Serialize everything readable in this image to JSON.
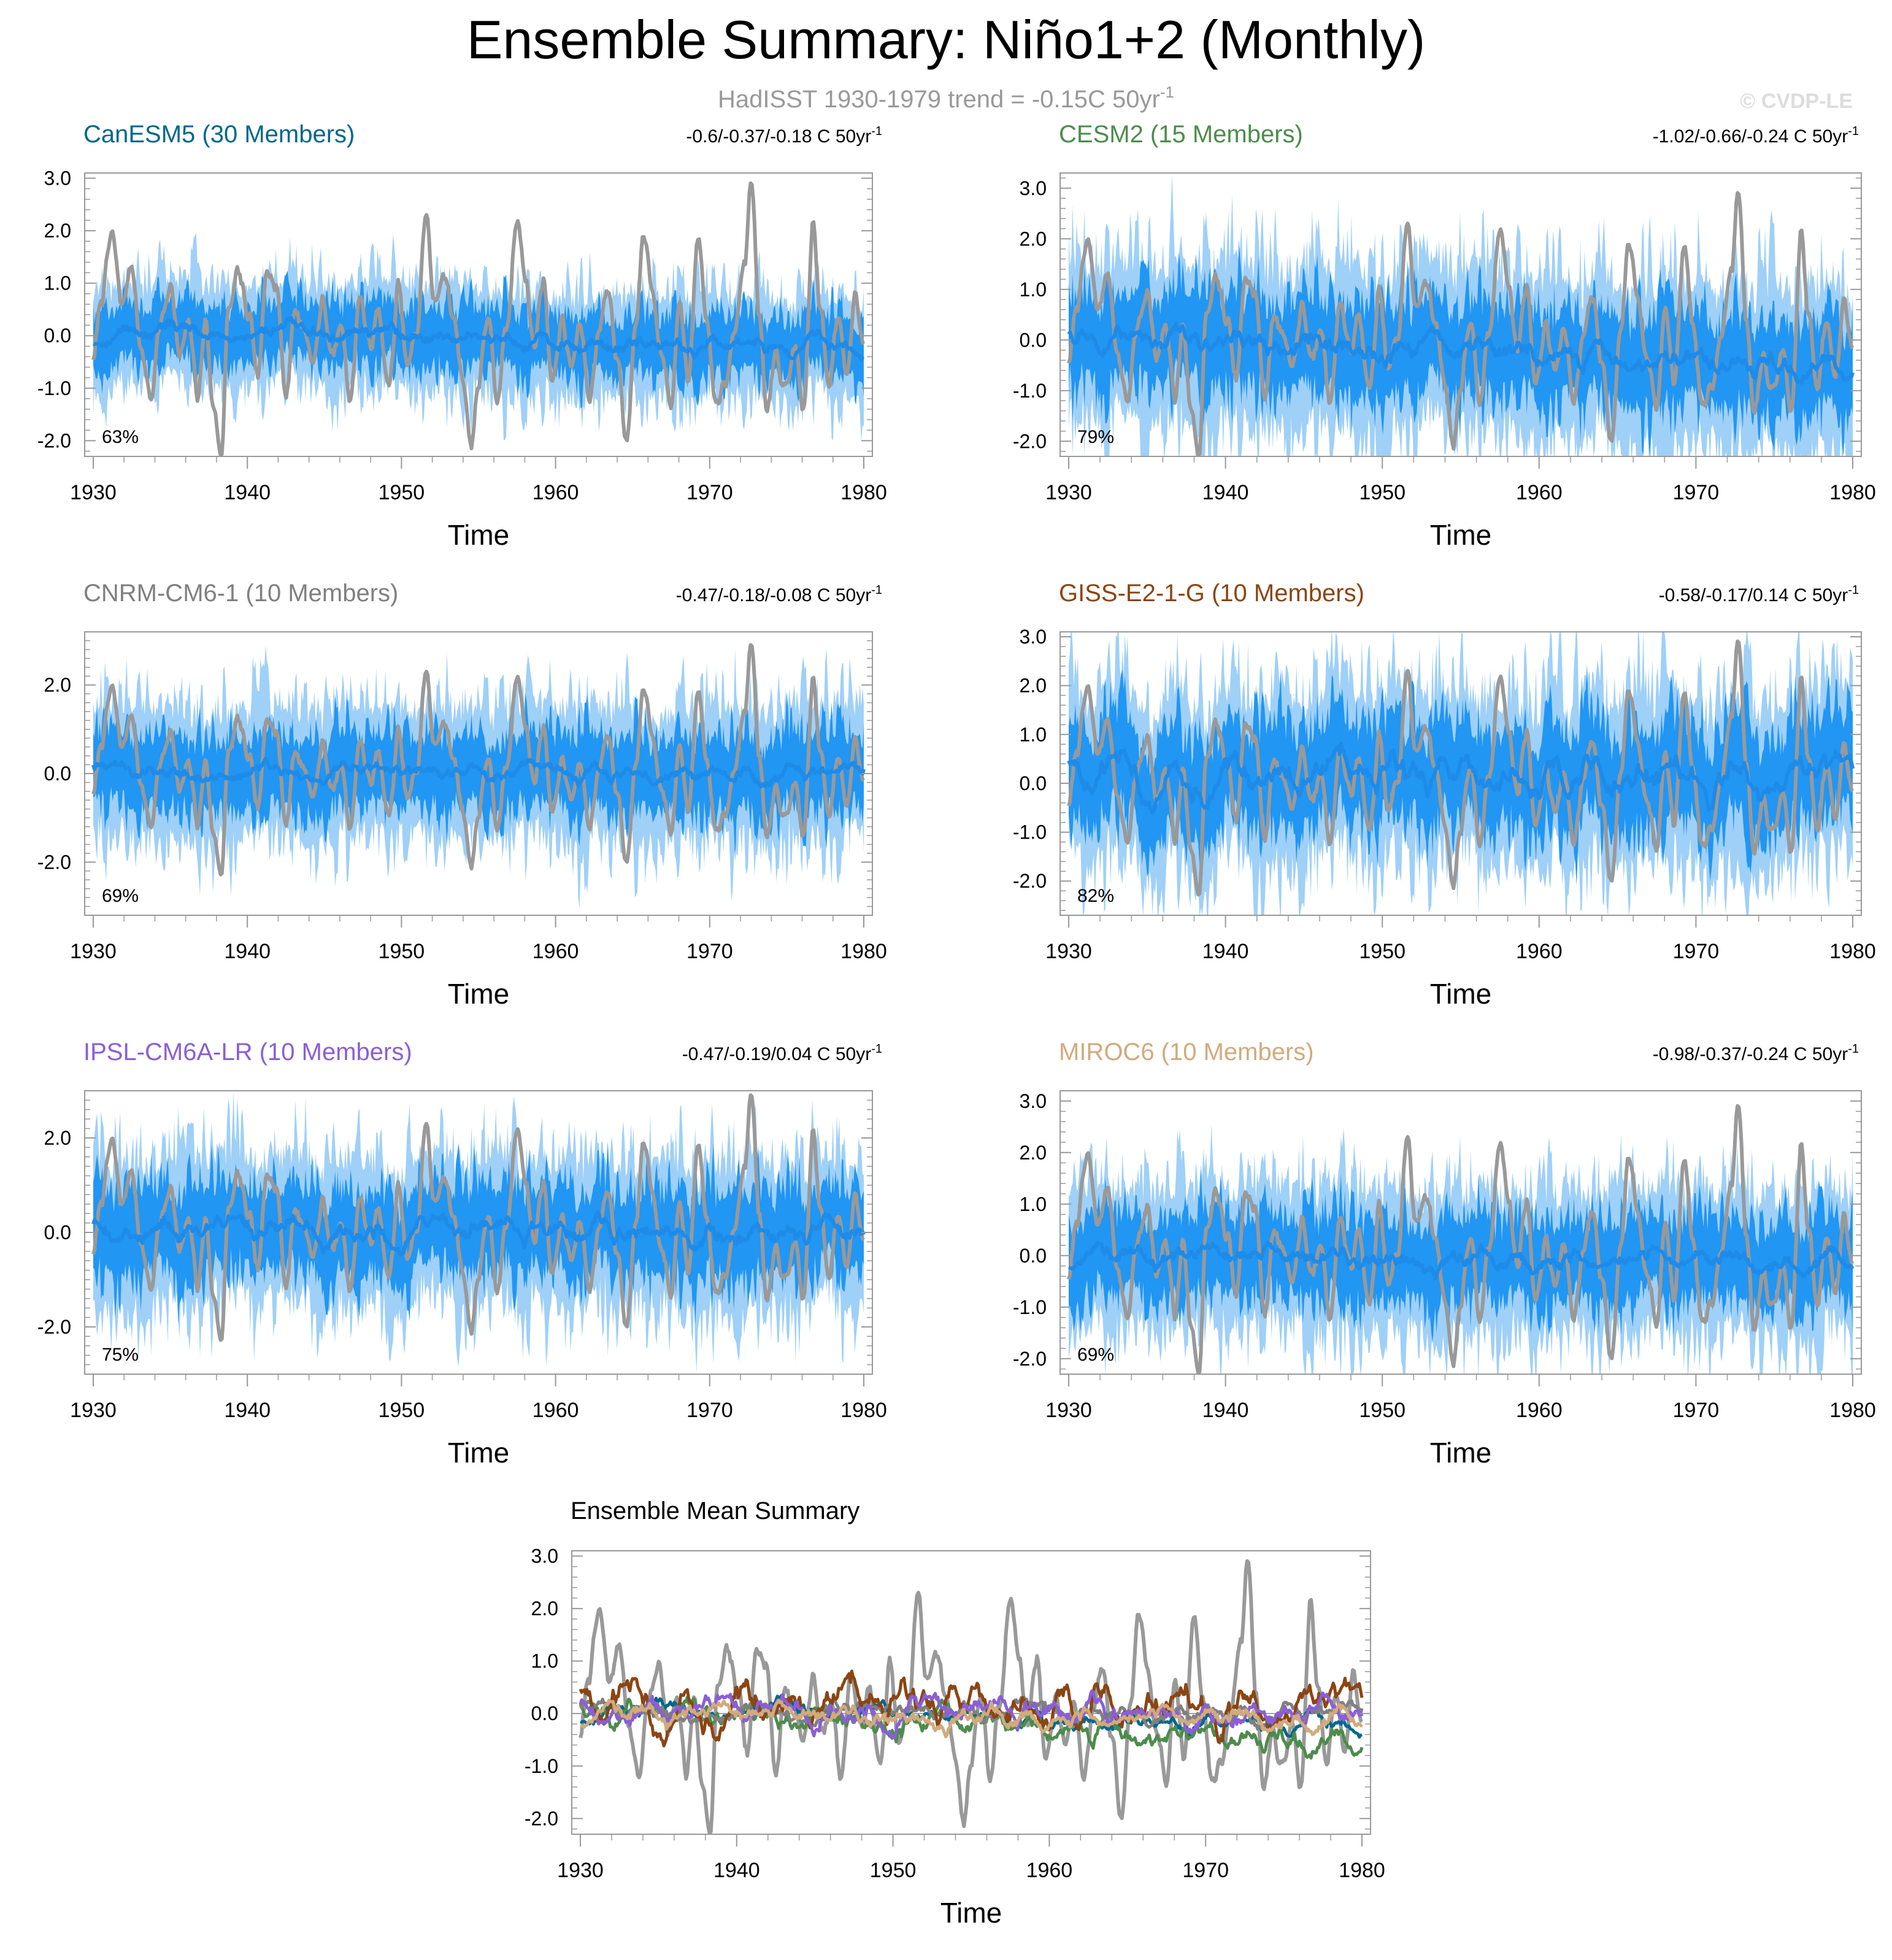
{
  "title": "Ensemble Summary: Niño1+2 (Monthly)",
  "subtitle": {
    "prefix": "HadISST 1930-1979 trend = -0.15C 50yr",
    "sup": "-1"
  },
  "watermark": "© CVDP-LE",
  "colors": {
    "observed": "#999999",
    "spread_light": "#9fd0f7",
    "spread_dark": "#2196f3",
    "ensemble_mean": "#1e8be8",
    "zero_line": "#888888",
    "subtitle": "#999999",
    "watermark": "#dddddd"
  },
  "chart_data": [
    {
      "type": "line",
      "title": "CanESM5 (30 Members)",
      "title_color": "#00688b",
      "trend_text": "-0.6/-0.37/-0.18 C 50yr",
      "trend_sup": "-1",
      "pct_label": "63%",
      "xlabel": "Time",
      "xlim": [
        1930,
        1980
      ],
      "x_ticks": [
        1930,
        1940,
        1950,
        1960,
        1970,
        1980
      ],
      "ylim": [
        -2.3,
        3.1
      ],
      "y_ticks": [
        -2.0,
        -1.0,
        0.0,
        1.0,
        2.0,
        3.0
      ],
      "y_tick_labels": [
        "-2.0",
        "-1.0",
        "0.0",
        "1.0",
        "2.0",
        "3.0"
      ],
      "spread_outer": 0.85,
      "spread_inner": 0.5,
      "mean_end": -0.2,
      "mean_amp": 0.22
    },
    {
      "type": "line",
      "title": "CESM2 (15 Members)",
      "title_color": "#4c8c4c",
      "trend_text": "-1.02/-0.66/-0.24 C 50yr",
      "trend_sup": "-1",
      "pct_label": "79%",
      "xlabel": "Time",
      "xlim": [
        1930,
        1980
      ],
      "x_ticks": [
        1930,
        1940,
        1950,
        1960,
        1970,
        1980
      ],
      "ylim": [
        -2.3,
        3.3
      ],
      "y_ticks": [
        -2.0,
        -1.0,
        0.0,
        1.0,
        2.0,
        3.0
      ],
      "y_tick_labels": [
        "-2.0",
        "-1.0",
        "0.0",
        "1.0",
        "2.0",
        "3.0"
      ],
      "spread_outer": 1.4,
      "spread_inner": 0.8,
      "mean_end": -0.55,
      "mean_amp": 0.35
    },
    {
      "type": "line",
      "title": "CNRM-CM6-1 (10 Members)",
      "title_color": "#808080",
      "trend_text": "-0.47/-0.18/-0.08 C 50yr",
      "trend_sup": "-1",
      "pct_label": "69%",
      "xlabel": "Time",
      "xlim": [
        1930,
        1980
      ],
      "x_ticks": [
        1930,
        1940,
        1950,
        1960,
        1970,
        1980
      ],
      "ylim": [
        -3.2,
        3.2
      ],
      "y_ticks": [
        -2.0,
        0.0,
        2.0
      ],
      "y_tick_labels": [
        "-2.0",
        "0.0",
        "2.0"
      ],
      "spread_outer": 1.3,
      "spread_inner": 0.75,
      "mean_end": 0.0,
      "mean_amp": 0.25
    },
    {
      "type": "line",
      "title": "GISS-E2-1-G (10 Members)",
      "title_color": "#8b4513",
      "trend_text": "-0.58/-0.17/0.14 C 50yr",
      "trend_sup": "-1",
      "pct_label": "82%",
      "xlabel": "Time",
      "xlim": [
        1930,
        1980
      ],
      "x_ticks": [
        1930,
        1940,
        1950,
        1960,
        1970,
        1980
      ],
      "ylim": [
        -2.7,
        3.1
      ],
      "y_ticks": [
        -2.0,
        -1.0,
        0.0,
        1.0,
        2.0,
        3.0
      ],
      "y_tick_labels": [
        "-2.0",
        "-1.0",
        "0.0",
        "1.0",
        "2.0",
        "3.0"
      ],
      "spread_outer": 1.5,
      "spread_inner": 0.9,
      "mean_end": 0.2,
      "mean_amp": 0.5
    },
    {
      "type": "line",
      "title": "IPSL-CM6A-LR (10 Members)",
      "title_color": "#8a5fd6",
      "trend_text": "-0.47/-0.19/0.04 C 50yr",
      "trend_sup": "-1",
      "pct_label": "75%",
      "xlabel": "Time",
      "xlim": [
        1930,
        1980
      ],
      "x_ticks": [
        1930,
        1940,
        1950,
        1960,
        1970,
        1980
      ],
      "ylim": [
        -3.0,
        3.0
      ],
      "y_ticks": [
        -2.0,
        0.0,
        2.0
      ],
      "y_tick_labels": [
        "-2.0",
        "0.0",
        "2.0"
      ],
      "spread_outer": 1.35,
      "spread_inner": 0.8,
      "mean_end": -0.05,
      "mean_amp": 0.35
    },
    {
      "type": "line",
      "title": "MIROC6 (10 Members)",
      "title_color": "#d2aa7d",
      "trend_text": "-0.98/-0.37/-0.24 C 50yr",
      "trend_sup": "-1",
      "pct_label": "69%",
      "xlabel": "Time",
      "xlim": [
        1930,
        1980
      ],
      "x_ticks": [
        1930,
        1940,
        1950,
        1960,
        1970,
        1980
      ],
      "ylim": [
        -2.3,
        3.2
      ],
      "y_ticks": [
        -2.0,
        -1.0,
        0.0,
        1.0,
        2.0,
        3.0
      ],
      "y_tick_labels": [
        "-2.0",
        "-1.0",
        "0.0",
        "1.0",
        "2.0",
        "3.0"
      ],
      "spread_outer": 1.2,
      "spread_inner": 0.7,
      "mean_end": -0.2,
      "mean_amp": 0.28
    },
    {
      "type": "line",
      "title": "Ensemble Mean Summary",
      "xlabel": "Time",
      "xlim": [
        1930,
        1980
      ],
      "x_ticks": [
        1930,
        1940,
        1950,
        1960,
        1970,
        1980
      ],
      "ylim": [
        -2.3,
        3.1
      ],
      "y_ticks": [
        -2.0,
        -1.0,
        0.0,
        1.0,
        2.0,
        3.0
      ],
      "y_tick_labels": [
        "-2.0",
        "-1.0",
        "0.0",
        "1.0",
        "2.0",
        "3.0"
      ],
      "series": [
        {
          "name": "CanESM5",
          "color": "#00688b"
        },
        {
          "name": "CESM2",
          "color": "#4c8c4c"
        },
        {
          "name": "CNRM-CM6-1",
          "color": "#808080"
        },
        {
          "name": "GISS-E2-1-G",
          "color": "#8b4513"
        },
        {
          "name": "IPSL-CM6A-LR",
          "color": "#8a5fd6"
        },
        {
          "name": "MIROC6",
          "color": "#d2aa7d"
        }
      ]
    }
  ],
  "observed_peaks": [
    [
      1930.0,
      -0.5
    ],
    [
      1930.5,
      0.7
    ],
    [
      1931.2,
      1.9
    ],
    [
      1931.9,
      0.6
    ],
    [
      1932.5,
      1.4
    ],
    [
      1933.1,
      -0.3
    ],
    [
      1933.8,
      -1.2
    ],
    [
      1934.3,
      0.2
    ],
    [
      1935.0,
      1.0
    ],
    [
      1935.6,
      -0.4
    ],
    [
      1936.2,
      0.2
    ],
    [
      1936.8,
      -1.1
    ],
    [
      1937.3,
      0.3
    ],
    [
      1937.8,
      -1.4
    ],
    [
      1938.3,
      -2.2
    ],
    [
      1938.8,
      0.5
    ],
    [
      1939.4,
      1.2
    ],
    [
      1940.1,
      0.3
    ],
    [
      1940.7,
      -0.8
    ],
    [
      1941.3,
      1.4
    ],
    [
      1941.9,
      0.9
    ],
    [
      1942.5,
      -1.1
    ],
    [
      1943.1,
      0.5
    ],
    [
      1943.7,
      0.1
    ],
    [
      1944.3,
      -0.5
    ],
    [
      1944.9,
      0.7
    ],
    [
      1945.5,
      -0.4
    ],
    [
      1946.1,
      0.2
    ],
    [
      1946.7,
      -1.2
    ],
    [
      1947.3,
      0.8
    ],
    [
      1947.9,
      -0.2
    ],
    [
      1948.5,
      0.4
    ],
    [
      1949.2,
      -1.0
    ],
    [
      1949.8,
      0.9
    ],
    [
      1950.4,
      -0.6
    ],
    [
      1951.0,
      0.1
    ],
    [
      1951.6,
      2.35
    ],
    [
      1952.1,
      0.6
    ],
    [
      1952.7,
      1.2
    ],
    [
      1953.4,
      0.3
    ],
    [
      1954.0,
      -0.8
    ],
    [
      1954.5,
      -2.1
    ],
    [
      1955.0,
      -0.9
    ],
    [
      1955.6,
      0.4
    ],
    [
      1956.2,
      -1.3
    ],
    [
      1956.8,
      0.2
    ],
    [
      1957.5,
      2.2
    ],
    [
      1958.1,
      1.0
    ],
    [
      1958.6,
      -0.2
    ],
    [
      1959.2,
      1.1
    ],
    [
      1959.8,
      -0.9
    ],
    [
      1960.4,
      0.3
    ],
    [
      1961.0,
      -0.6
    ],
    [
      1961.6,
      0.2
    ],
    [
      1962.2,
      -1.2
    ],
    [
      1962.8,
      0.1
    ],
    [
      1963.4,
      0.9
    ],
    [
      1964.0,
      -0.4
    ],
    [
      1964.6,
      -2.0
    ],
    [
      1965.2,
      0.2
    ],
    [
      1965.7,
      2.1
    ],
    [
      1966.3,
      0.8
    ],
    [
      1966.9,
      -0.4
    ],
    [
      1967.5,
      -1.4
    ],
    [
      1968.1,
      0.7
    ],
    [
      1968.6,
      -1.0
    ],
    [
      1969.2,
      1.8
    ],
    [
      1969.8,
      0.3
    ],
    [
      1970.4,
      -1.3
    ],
    [
      1971.0,
      -1.0
    ],
    [
      1971.6,
      0.2
    ],
    [
      1972.3,
      1.5
    ],
    [
      1972.7,
      2.95
    ],
    [
      1973.2,
      0.4
    ],
    [
      1973.7,
      -1.4
    ],
    [
      1974.3,
      -0.3
    ],
    [
      1974.9,
      -1.1
    ],
    [
      1975.5,
      -0.2
    ],
    [
      1976.1,
      -1.4
    ],
    [
      1976.7,
      2.1
    ],
    [
      1977.2,
      0.5
    ],
    [
      1977.7,
      -0.9
    ],
    [
      1978.3,
      0.3
    ],
    [
      1978.9,
      -0.8
    ],
    [
      1979.4,
      0.8
    ],
    [
      1980.0,
      0.0
    ]
  ]
}
